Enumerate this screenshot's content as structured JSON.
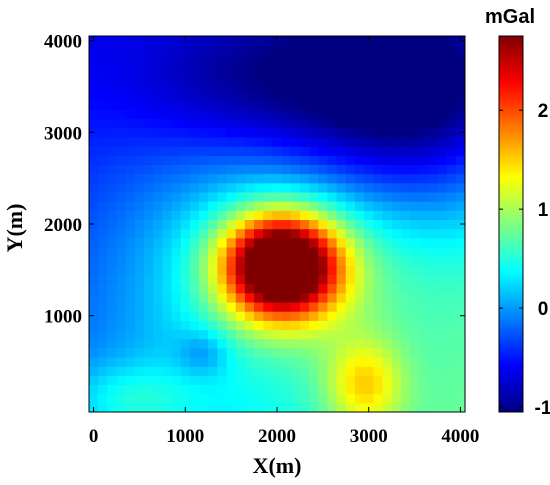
{
  "chart_data": {
    "type": "heatmap",
    "xlabel": "X(m)",
    "ylabel": "Y(m)",
    "xlim": [
      -50,
      4050
    ],
    "ylim": [
      -50,
      4050
    ],
    "x_ticks": [
      0,
      1000,
      2000,
      3000,
      4000
    ],
    "y_ticks": [
      1000,
      2000,
      3000,
      4000
    ],
    "x_tick_labels": [
      "0",
      "1000",
      "2000",
      "3000",
      "4000"
    ],
    "y_tick_labels": [
      "1000",
      "2000",
      "3000",
      "4000"
    ],
    "grid": false,
    "colormap": "jet",
    "colorbar": {
      "unit": "mGal",
      "range": [
        -1.05,
        2.75
      ],
      "ticks": [
        -1,
        0,
        1,
        2
      ],
      "tick_labels": [
        "-1",
        "0",
        "1",
        "2"
      ]
    },
    "cells_per_side": 41,
    "cell_size_m": 100,
    "anomalies": [
      {
        "name": "central-high",
        "x": 2050,
        "y": 1550,
        "peak": 3.15
      },
      {
        "name": "southeast-high",
        "x": 2950,
        "y": 250,
        "peak": 1.0
      },
      {
        "name": "southwest-shoulder",
        "x": 400,
        "y": 100,
        "peak": 0.45
      },
      {
        "name": "northeast-low",
        "x": 3500,
        "y": 3500,
        "peak": -1.55
      }
    ]
  }
}
